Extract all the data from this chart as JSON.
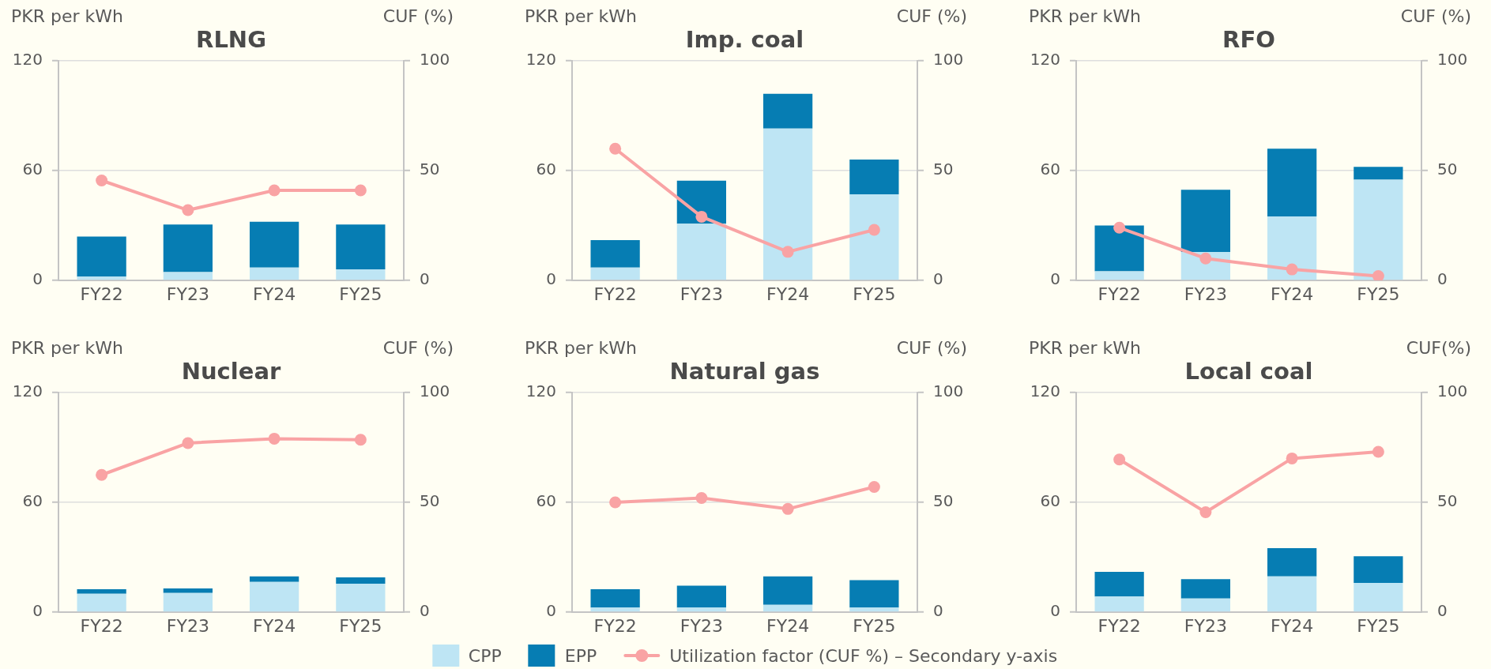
{
  "chart_data": [
    {
      "type": "bar",
      "title": "RLNG",
      "ylabel": "PKR per kWh",
      "y2label": "CUF (%)",
      "categories": [
        "FY22",
        "FY23",
        "FY24",
        "FY25"
      ],
      "stacked": true,
      "series": [
        {
          "color": "#bee5f4",
          "values": [
            2,
            4.5,
            7,
            6
          ]
        },
        {
          "color": "#067db3",
          "values": [
            22,
            26,
            25,
            24.5
          ]
        },
        {
          "type": "line",
          "axis": "y2",
          "color": "#f9a3a4",
          "values": [
            45.5,
            32,
            41,
            41
          ]
        }
      ],
      "ylim": [
        0,
        120
      ],
      "yticks": [
        0,
        60,
        120
      ],
      "y2lim": [
        0,
        100
      ],
      "y2ticks": [
        0,
        50,
        100
      ],
      "grid": "y",
      "marker": "circle"
    },
    {
      "type": "bar",
      "title": "Imp. coal",
      "ylabel": "PKR per kWh",
      "y2label": "CUF (%)",
      "categories": [
        "FY22",
        "FY23",
        "FY24",
        "FY25"
      ],
      "stacked": true,
      "series": [
        {
          "color": "#bee5f4",
          "values": [
            7,
            31,
            83,
            47
          ]
        },
        {
          "color": "#067db3",
          "values": [
            15,
            23.5,
            19,
            19
          ]
        },
        {
          "type": "line",
          "axis": "y2",
          "color": "#f9a3a4",
          "values": [
            60,
            29,
            13,
            23
          ]
        }
      ],
      "ylim": [
        0,
        120
      ],
      "yticks": [
        0,
        60,
        120
      ],
      "y2lim": [
        0,
        100
      ],
      "y2ticks": [
        0,
        50,
        100
      ],
      "grid": "y",
      "marker": "circle"
    },
    {
      "type": "bar",
      "title": "RFO",
      "ylabel": "PKR per kWh",
      "y2label": "CUF (%)",
      "categories": [
        "FY22",
        "FY23",
        "FY24",
        "FY25"
      ],
      "stacked": true,
      "series": [
        {
          "color": "#bee5f4",
          "values": [
            5,
            15.5,
            35,
            55
          ]
        },
        {
          "color": "#067db3",
          "values": [
            25,
            34,
            37,
            7
          ]
        },
        {
          "type": "line",
          "axis": "y2",
          "color": "#f9a3a4",
          "values": [
            24,
            10,
            5,
            2
          ]
        }
      ],
      "ylim": [
        0,
        120
      ],
      "yticks": [
        0,
        60,
        120
      ],
      "y2lim": [
        0,
        100
      ],
      "y2ticks": [
        0,
        50,
        100
      ],
      "grid": "y",
      "marker": "circle"
    },
    {
      "type": "bar",
      "title": "Nuclear",
      "ylabel": "PKR per kWh",
      "y2label": "CUF (%)",
      "categories": [
        "FY22",
        "FY23",
        "FY24",
        "FY25"
      ],
      "stacked": true,
      "series": [
        {
          "color": "#bee5f4",
          "values": [
            10,
            10.5,
            16.5,
            15.5
          ]
        },
        {
          "color": "#067db3",
          "values": [
            2.5,
            2.5,
            3,
            3.5
          ]
        },
        {
          "type": "line",
          "axis": "y2",
          "color": "#f9a3a4",
          "values": [
            62.5,
            77,
            79,
            78.5
          ]
        }
      ],
      "ylim": [
        0,
        120
      ],
      "yticks": [
        0,
        60,
        120
      ],
      "y2lim": [
        0,
        100
      ],
      "y2ticks": [
        0,
        50,
        100
      ],
      "grid": "y",
      "marker": "circle"
    },
    {
      "type": "bar",
      "title": "Natural gas",
      "ylabel": "PKR per kWh",
      "y2label": "CUF (%)",
      "categories": [
        "FY22",
        "FY23",
        "FY24",
        "FY25"
      ],
      "stacked": true,
      "series": [
        {
          "name": "CPP",
          "color": "#bee5f4",
          "values": [
            2.5,
            2.5,
            4,
            2.5
          ]
        },
        {
          "name": "EPP",
          "color": "#067db3",
          "values": [
            10,
            12,
            15.5,
            15
          ]
        },
        {
          "name": "Utilization factor (CUF %) – Secondary y-axis",
          "type": "line",
          "axis": "y2",
          "color": "#f9a3a4",
          "values": [
            50,
            52,
            47,
            57
          ]
        }
      ],
      "ylim": [
        0,
        120
      ],
      "yticks": [
        0,
        60,
        120
      ],
      "y2lim": [
        0,
        100
      ],
      "y2ticks": [
        0,
        50,
        100
      ],
      "grid": "y",
      "marker": "circle",
      "legend": "bottom"
    },
    {
      "type": "bar",
      "title": "Local coal",
      "ylabel": "PKR per kWh",
      "y2label": "CUF(%)",
      "categories": [
        "FY22",
        "FY23",
        "FY24",
        "FY25"
      ],
      "stacked": true,
      "series": [
        {
          "color": "#bee5f4",
          "values": [
            8.5,
            7.5,
            19.5,
            16
          ]
        },
        {
          "color": "#067db3",
          "values": [
            13.5,
            10.5,
            15.5,
            14.5
          ]
        },
        {
          "type": "line",
          "axis": "y2",
          "color": "#f9a3a4",
          "values": [
            69.5,
            45.5,
            70,
            73
          ]
        }
      ],
      "ylim": [
        0,
        120
      ],
      "yticks": [
        0,
        60,
        120
      ],
      "y2lim": [
        0,
        100
      ],
      "y2ticks": [
        0,
        50,
        100
      ],
      "grid": "y",
      "marker": "circle"
    }
  ]
}
